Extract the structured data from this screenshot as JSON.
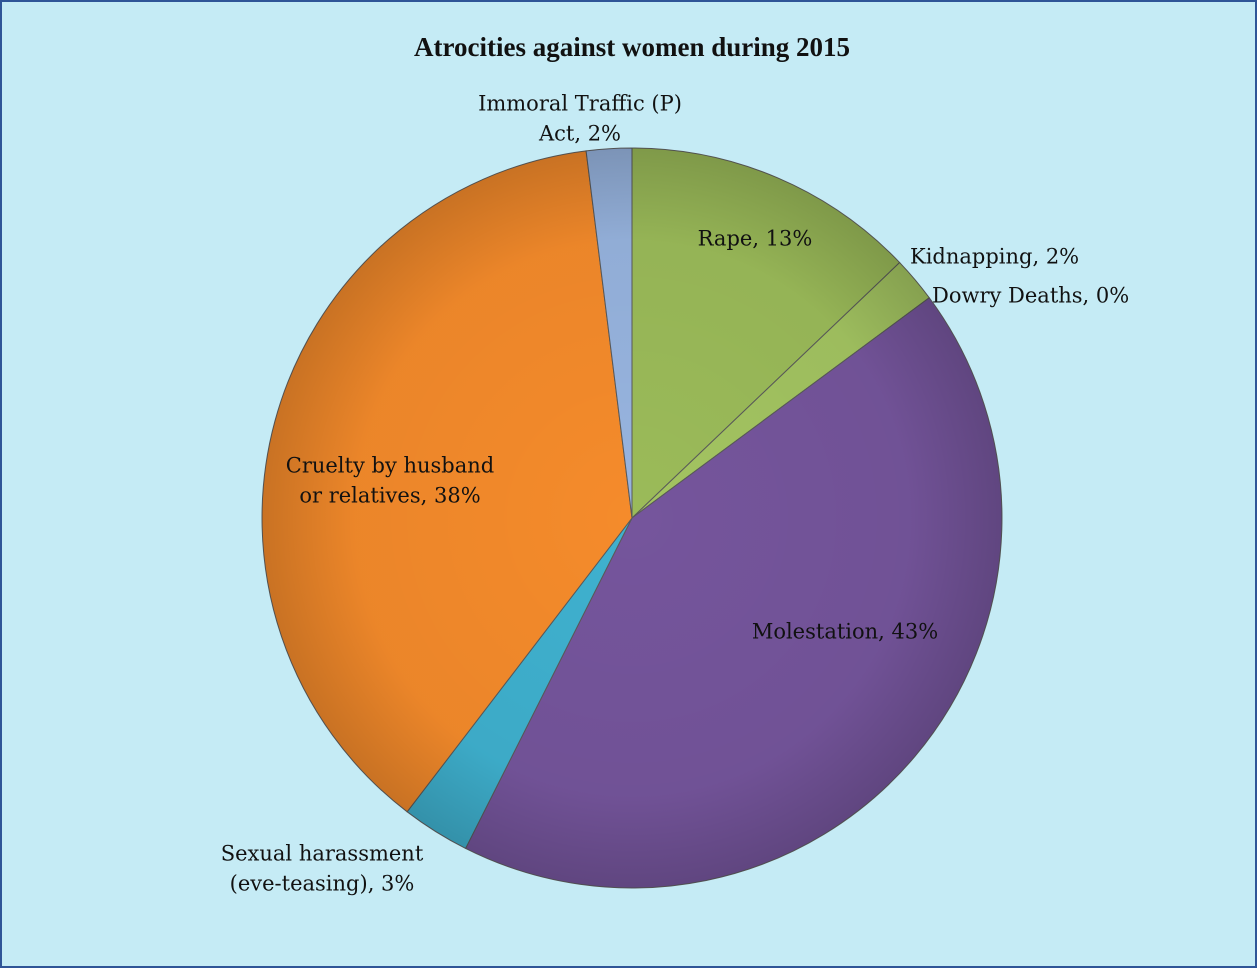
{
  "chart_data": {
    "type": "pie",
    "title": "Atrocities against women during 2015",
    "labels": [
      [
        "Rape, 13%"
      ],
      [
        "Kidnapping, 2%"
      ],
      [
        "Dowry Deaths, 0%"
      ],
      [
        "Molestation, 43%"
      ],
      [
        "Sexual harassment",
        "(eve-teasing), 3%"
      ],
      [
        "Cruelty by husband",
        "or relatives, 38%"
      ],
      [
        "Immoral Traffic (P)",
        "Act, 2%"
      ]
    ],
    "values": [
      13,
      2,
      0,
      43,
      3,
      38,
      2
    ],
    "colors": [
      "#9bbb59",
      "#a3c461",
      "#4f81bd",
      "#75559c",
      "#3fb1cf",
      "#f58b2b",
      "#97b4df"
    ]
  }
}
